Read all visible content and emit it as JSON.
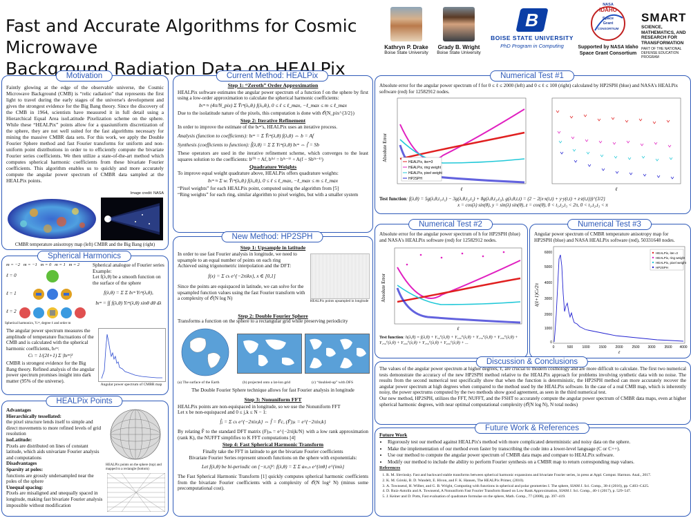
{
  "header": {
    "title_line1": "Fast and Accurate Algorithms for Cosmic Microwave",
    "title_line2": "Background Radiation Data on HEALPix Points",
    "authors": [
      {
        "name": "Kathryn P. Drake",
        "affil": "Boise State University"
      },
      {
        "name": "Grady B. Wright",
        "affil": "Boise State University"
      }
    ],
    "bsu_name": "BOISE STATE UNIVERSITY",
    "bsu_program": "PhD Program in Computing",
    "nasa_line1": "NASA",
    "nasa_line2": "IDAHO",
    "nasa_line3": "Space",
    "nasa_line4": "Grant",
    "nasa_line5": "CONSORTIUM",
    "nasa_support": "Supported by NASA Idaho Space Grant Consortium",
    "smart_title": "SMART",
    "smart_sub": "SCIENCE, MATHEMATICS, AND RESEARCH FOR TRANSFORMATION",
    "smart_part": "PART OF THE NATIONAL DEFENSE EDUCATION PROGRAM"
  },
  "motivation": {
    "title": "Motivation",
    "text": "Faintly glowing at the edge of the observable universe, the Cosmic Microwave Background (CMB) is “relic radiation” that represents the first light to travel during the early stages of the universe's development and gives the strongest evidence for the Big Bang theory. Since the discovery of the CMB in 1964, scientists have measured it in full detail using a Hierarchical Equal Area isoLatitude Pixelization scheme on the sphere. While these “HEALPix” points allow for a quasiuniform discretization of the sphere, they are not well suited for the fast algorithms necessary for mining the massive CMBR data sets. For this work, we apply the Double Fourier Sphere method and fast Fourier transforms for uniform and non-uniform point distributions in order to to efficiently compute the bivariate Fourier series coefficients. We then utilize a state-of-the-art method which computes spherical harmonic coefficients from these bivariate Fourier coefficients. This algorithm enables us to quickly and more accurately compute the angular power spectrum of CMBR data sampled at the HEALPix points.",
    "credit": "Image credit: NASA",
    "caption": "CMBR temperature anisotropy map (left) CMBR and the Big Bang (right)"
  },
  "harmonics": {
    "title": "Spherical Harmonics",
    "m_labels": "m = −2   m = −1   m = 0   m = 1   m = 2",
    "l_labels": [
      "ℓ = 0",
      "ℓ = 1",
      "ℓ = 2"
    ],
    "example": "Spherical analogue of Fourier series Example:",
    "let": "Let f(λ,θ) be a smooth function on the surface of the sphere",
    "eq1": "f(λ,θ) = Σ Σ bₗᵐ Yₗᵐ(λ,θ),",
    "eq2": "bₗᵐ = ∫∫ f(λ,θ) Yₗᵐ(λ,θ) sinθ dθ dλ",
    "sh_caption": "Spherical harmonics, Yₗᵐ, degree ℓ and order m",
    "aps_text": "The angular power spectrum measures the amplitude of temperature fluctuations of the CMB and is calculated with the spherical harmonic coefficients, bₗᵐ:",
    "cl_eq": "Cₗ = 1/(2ℓ+1) Σ |bₗᵐ|²",
    "cmbr_text": "CMBR is strongest evidence for the Big Bang theory. Refined analysis of the angular power spectrum promises insight into dark matter (95% of the universe).",
    "aps_caption": "Angular power spectrum of CMBR map"
  },
  "healpix_points": {
    "title": "HEALPix Points",
    "adv": "Advantages",
    "h1": "Hierarchically tessellated:",
    "t1": "the pixel structure lends itself to simple and direct movements to more refined levels of grid resolution",
    "h2": "isoLatitude:",
    "t2": "Pixels are distributed on lines of constant latitude, which aids univariate Fourier analysis and computations",
    "dis": "Disadvantages",
    "h3": "Sparsity at poles:",
    "t3": "functions are grossly undersampled near the poles of the sphere",
    "h4": "Unequal spacing:",
    "t4": "Pixels are misaligned and unequally spaced in longitude, making fast bivariate Fourier analysis impossible without modification",
    "caption": "HEALPix points on the sphere (top) and mapped to a rectangle (bottom)"
  },
  "current": {
    "title": "Current Method: HEALPix",
    "s1": "Step 1: “Zeroth” Order Approximation",
    "s1t": "HEALPix software estimates the angular power spectrum of a function f on the sphere by first using a low-order approximation to calculate the spherical harmonic coefficients:",
    "s1eq": "bₗᵐ ≈ (4π/N_pix) Σ Ȳₗᵐ(λᵢ,θᵢ) f(λᵢ,θᵢ),  0 ≤ ℓ ≤ ℓ_max, −ℓ_max ≤ m ≤ ℓ_max",
    "s1b": "Due to the isolatitude nature of the pixels, this computation is done with 𝒪(N_pix^{3/2})",
    "s2": "Step 2: Iterative Refinement",
    "s2t": "In order to improve the estimate of the bₗᵐ's, HEALPix uses an iterative process.",
    "analysis": "Analysis (function to coefficients):  bₗᵐ = Σ Ȳₗᵐ(λ,θ) f(λ,θ) ⇔ b = Af",
    "synthesis": "Synthesis (coefficients to function):  f̃(λ,θ) = Σ Σ Yₗᵐ(λ,θ) bₗᵐ ⇔ f̃ = Sb",
    "s2b": "These operators are used in the iterative refinement scheme, which converges to the least squares solution to the coefficients: b⁽⁰⁾ = Af,   b⁽ᵏ⁾ = b⁽ᵏ⁻¹⁾ + A(f − Sb⁽ᵏ⁻¹⁾)",
    "qw": "Quadrature Weights",
    "qwt": "To improve equal weight quadrature above, HEALPix offers quadrature weights:",
    "qweq": "bₗᵐ ≈ Σ wᵢ Ȳₗᵐ(λᵢ,θᵢ) f(λᵢ,θᵢ),  0 ≤ ℓ ≤ ℓ_max, −ℓ_max ≤ m ≤ ℓ_max",
    "pix": "“Pixel weights” for each HEALPix point, computed using the algorithm from [5]",
    "ring": "“Ring weights” for each ring, similar algorithm to pixel weights, but with a smaller system"
  },
  "newm": {
    "title": "New Method: HP2SPH",
    "s1": "Step 1: Upsample in latitude",
    "s1t": "In order to use fast Fourier analysis in longitude, we need to upsample to an equal number of points on each ring",
    "s1t2": "Achieved using trigonometric interpolation and the DFT:",
    "s1eq": "f(x) = Σ cₖ e^{−2πikx},   x ∈ [0,1]",
    "s1t3": "Since the points are equispaced in latitude, we can solve for the upsampled function values using the fast Fourier transform with a complexity of 𝒪(N log N)",
    "up_caption": "HEALPix points upsampled in longitude",
    "s2": "Step 2: Double Fourier Sphere",
    "s2t": "Transforms a function on the sphere to a rectangular grid while preserving periodicity",
    "cap_a": "(a) The surface of the Earth",
    "cap_b": "(b) projected onto a lat-lon grid",
    "cap_c": "(c) “doubled-up” with DFS",
    "s2b": "The Double Fourier Sphere technique allows for fast Fourier analysis in longitude",
    "s3": "Step 3: Nonuniform FFT",
    "s3t": "HEALPix points are non-equispaced in longitude, so we use the Nonuniform FFT",
    "s3let": "Let x be non-equispaced and 0 ≤ j,k ≤ N − 1:",
    "s3eq": "f̂ⱼ = Σ cₖ e^{−2πixⱼk}   ⇔   f̂ = F̃c,  (F̃)ⱼₖ = e^{−2πixⱼk}",
    "s3b": "By relating F̃ to the standard DFT matrix (F)ⱼₖ = e^{−2πijk/N} with a low rank approximation (rank K), the NUFFT simplifies to K FFT computations [4]",
    "s4": "Step 4: Fast Spherical Harmonic Transform",
    "s4t": "Finally take the FFT in latitude to get the bivariate Fourier coefficients",
    "s4t2": "Bivariate Fourier Series represent smooth functions on the sphere with exponentials:",
    "s4eq": "Let f(λ,θ) be bi-periodic on [−π,π]²:  f(λ,θ) = Σ Σ aₘ,ₙ e^{inθ} e^{imλ}",
    "s4b": "The Fast Spherical Harmonic Transform [1] quickly computes spherical harmonic coefficients from the bivariate Fourier coefficients with a complexity of 𝒪(N log² N) (minus some precomputational cost)."
  },
  "test1": {
    "title": "Numerical Test #1",
    "text": "Absolute error for the angular power spectrum of f for 0 ≤ ℓ ≤ 2000 (left) and 0 ≤ ℓ ≤ 100 (right) calculated by HP2SPH (blue) and NASA's HEALPix software (red) for 12582912 nodes.",
    "ylabel": "Absolute Error",
    "xlabel": "ℓ",
    "legend": [
      "HEALPix, iter=3",
      "HEALPix, ring weight",
      "HEALPix, pixel weight",
      "HP2SPH"
    ],
    "tf_label": "Test function",
    "tf": ": f(λ,θ) = 5g(λ,θ,t₁,t₁) − 3g(λ,θ,t₂,t₂) + 8g(λ,θ,t₃,t₃),  g(λ,θ,t,t) = (2 − 2(x·x(t,t) + y·y(t,t) + z·z(t,t)))^{3/2}",
    "tf2": "x = cos(λ) sin(θ),  y = sin(λ) sin(θ),  z = cos(θ),  0 < t₁,t₂,t₃ < 2π,  0 < t₁,t₂,t₃ < π"
  },
  "test2": {
    "title": "Numerical Test #2",
    "text": "Absolute error for the angular power spectrum of h for HP2SPH (blue) and NASA's HEALPix software (red) for 12582912 nodes.",
    "ylabel": "Absolute Error",
    "xlabel": "ℓ",
    "tf_label": "Test function",
    "tf": ": h(λ,θ) = f(λ,θ) + Y₅₀⁰(λ,θ) + Y₁₀₀⁰(λ,θ) + Y₁₅₀⁰(λ,θ) + Y₂₀₀⁰(λ,θ) + Y₂₅₀⁰(λ,θ) + Y₃₀₀⁰(λ,θ) + Y₃₅₀⁰(λ,θ) + Y₄₀₀⁰(λ,θ) + ..."
  },
  "test3": {
    "title": "Numerical Test #3",
    "text": "Angular power spectrum of CMBR temperature anisotropy map for HP2SPH (blue) and NASA HEALPix software (red), 50331648 nodes.",
    "ylabel": "ℓ(ℓ+1)Cₗ/2π",
    "xlabel": "ℓ",
    "yticks": [
      "6000",
      "5000",
      "4000",
      "3000",
      "2000",
      "1000",
      "0"
    ],
    "xticks": [
      "0",
      "500",
      "1000",
      "1500",
      "2000",
      "2500",
      "3000",
      "3500",
      "4000"
    ],
    "legend": [
      "HEALPix, iter=3",
      "HEALPix, ring weight",
      "HEALPix, pixel weight",
      "HP2SPH"
    ]
  },
  "discussion": {
    "title": "Discussion & Conclusions",
    "p1": "The values of the angular power spectrum at higher degrees, ℓ, are crucial to modern cosmology and are more difficult to calculate. The first two numerical tests demonstrate the accuracy of the new HP2SPH method relative to the HEALPix approach for problems involving synthetic data with no noise. The results from the second numerical test specifically show that when the function is deterministic, the HP2SPH method can more accurately recover the angular power spectrum at high degrees when compared to the method used by the HEALPix software. In the case of a real CMB map, which is inherently noisy, the power spectrums computed by the two methods show good agreement, as seen in the third numerical test.",
    "p2": "Our new method, HP2SPH, utilizes the FFT, NUFFT, and the FSHT to accurately compute the angular power spectrum of CMBR data maps, even at higher spherical harmonic degrees, with near optimal computational complexity (𝒪(N log N), N total nodes)"
  },
  "future": {
    "title": "Future Work & References",
    "heading": "Future Work",
    "items": [
      "Rigorously test our method against HEALPix's method with more complicated deterministic and noisy data on the sphere.",
      "Make the implementation of our method even faster by transcribing the code into a lower-level language (C or C++).",
      "Use our method to compute the angular power spectrum of CMBR data maps and compare to HEALPix software.",
      "Modify our method to include the ability to perform Fourier synthesis on a CMBR map to return corresponding map values."
    ],
    "refs_heading": "References",
    "refs": [
      "R. M. Slevinsky. Fast and backward stable transforms between spherical harmonic expansions and bivariate Fourier series, in press at Appl. Comput. Harmon. Anal., 2017.",
      "K. M. Górski, B. D. Wandelt, E. Hivon, and F. K. Hansen, The HEALPix Primer, (2010).",
      "A. Townsend, H. Wilber, and G. B. Wright, Computing with functions in spherical and polar geometries I. The sphere, SIAM J. Sci. Comp., 38-4 (2016), pp. C403–C425.",
      "D. Ruiz-Antolín and A. Townsend, A Nonuniform Fast Fourier Transform Based on Low Rank Approximation, SIAM J. Sci. Comp., 40-1 (2017), p. 529–547.",
      "J. Keiner and D. Potts, Fast evaluation of quadrature formulae on the sphere, Math. Comp., 77 (2008), pp. 397–419."
    ]
  },
  "colors": {
    "accent": "#2d59b8",
    "red": "#e02020",
    "blue": "#2020d0",
    "magenta": "#e020c0",
    "cyan": "#20c8d8"
  }
}
